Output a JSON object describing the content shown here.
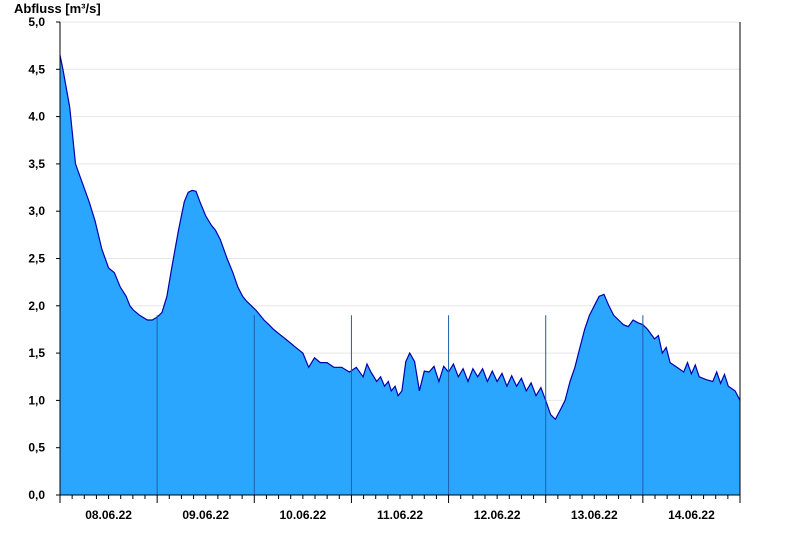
{
  "chart_data": {
    "type": "area",
    "title": "",
    "xlabel": "",
    "ylabel": "Abfluss [m³/s]",
    "ylim": [
      0,
      5.0
    ],
    "xlim_days": [
      7.5,
      14.5
    ],
    "yticks": [
      {
        "value": 0.0,
        "label": "0,0"
      },
      {
        "value": 0.5,
        "label": "0,5"
      },
      {
        "value": 1.0,
        "label": "1,0"
      },
      {
        "value": 1.5,
        "label": "1,5"
      },
      {
        "value": 2.0,
        "label": "2,0"
      },
      {
        "value": 2.5,
        "label": "2,5"
      },
      {
        "value": 3.0,
        "label": "3,0"
      },
      {
        "value": 3.5,
        "label": "3,5"
      },
      {
        "value": 4.0,
        "label": "4.0"
      },
      {
        "value": 4.5,
        "label": "4,5"
      },
      {
        "value": 5.0,
        "label": "5,0"
      }
    ],
    "xticks": [
      {
        "day": 8,
        "label": "08.06.22"
      },
      {
        "day": 9,
        "label": "09.06.22"
      },
      {
        "day": 10,
        "label": "10.06.22"
      },
      {
        "day": 11,
        "label": "11.06.22"
      },
      {
        "day": 12,
        "label": "12.06.22"
      },
      {
        "day": 13,
        "label": "13.06.22"
      },
      {
        "day": 14,
        "label": "14.06.22"
      }
    ],
    "midnight_lines": [
      8.5,
      9.5,
      10.5,
      11.5,
      12.5,
      13.5
    ],
    "grid": true,
    "colors": {
      "fill": "#2aa6ff",
      "line": "#0000aa",
      "grid": "#e6e6e6",
      "divider": "#1f5fa8"
    },
    "series": [
      {
        "name": "",
        "x": [
          7.5,
          7.53,
          7.6,
          7.66,
          7.73,
          7.8,
          7.86,
          7.93,
          8.0,
          8.06,
          8.12,
          8.18,
          8.22,
          8.26,
          8.32,
          8.4,
          8.45,
          8.5,
          8.55,
          8.6,
          8.65,
          8.72,
          8.78,
          8.82,
          8.86,
          8.9,
          8.94,
          9.0,
          9.06,
          9.1,
          9.15,
          9.22,
          9.28,
          9.33,
          9.38,
          9.42,
          9.47,
          9.52,
          9.56,
          9.6,
          9.65,
          9.7,
          9.76,
          9.82,
          9.88,
          9.94,
          10.0,
          10.06,
          10.12,
          10.18,
          10.25,
          10.32,
          10.4,
          10.48,
          10.55,
          10.62,
          10.7,
          10.76,
          10.8,
          10.84,
          10.88,
          10.91,
          10.95,
          10.98,
          11.02,
          11.1,
          11.2,
          11.3,
          11.4,
          11.5,
          11.6,
          11.7,
          11.8,
          11.9,
          12.0,
          12.1,
          12.2,
          12.3,
          12.4,
          12.5,
          12.55,
          12.6,
          12.65,
          12.7,
          12.75,
          12.8,
          12.85,
          12.9,
          12.95,
          13.0,
          13.05,
          13.1,
          13.15,
          13.2,
          13.25,
          13.3,
          13.35,
          13.4,
          13.45,
          13.5,
          13.55,
          13.62,
          13.7,
          13.78,
          13.85,
          13.92,
          14.0,
          14.08,
          14.15,
          14.22,
          14.3,
          14.38,
          14.45,
          14.5
        ],
        "values": [
          4.65,
          4.5,
          4.1,
          3.5,
          3.3,
          3.1,
          2.9,
          2.6,
          2.4,
          2.35,
          2.2,
          2.1,
          2.0,
          1.95,
          1.9,
          1.85,
          1.85,
          1.88,
          1.93,
          2.1,
          2.4,
          2.8,
          3.1,
          3.2,
          3.22,
          3.21,
          3.1,
          2.95,
          2.85,
          2.8,
          2.7,
          2.5,
          2.35,
          2.2,
          2.1,
          2.05,
          2.0,
          1.95,
          1.9,
          1.85,
          1.8,
          1.75,
          1.7,
          1.65,
          1.6,
          1.55,
          1.5,
          1.35,
          1.45,
          1.4,
          1.4,
          1.35,
          1.35,
          1.3,
          1.35,
          1.25,
          1.3,
          1.2,
          1.25,
          1.15,
          1.2,
          1.1,
          1.15,
          1.05,
          1.1,
          1.5,
          1.1,
          1.3,
          1.2,
          1.3,
          1.25,
          1.2,
          1.25,
          1.2,
          1.2,
          1.15,
          1.15,
          1.1,
          1.05,
          1.0,
          0.85,
          0.8,
          0.9,
          1.0,
          1.2,
          1.35,
          1.55,
          1.75,
          1.9,
          2.0,
          2.1,
          2.12,
          2.0,
          1.9,
          1.85,
          1.8,
          1.78,
          1.85,
          1.82,
          1.8,
          1.75,
          1.65,
          1.5,
          1.4,
          1.35,
          1.3,
          1.28,
          1.25,
          1.22,
          1.2,
          1.18,
          1.15,
          1.1,
          1.0
        ]
      }
    ]
  }
}
